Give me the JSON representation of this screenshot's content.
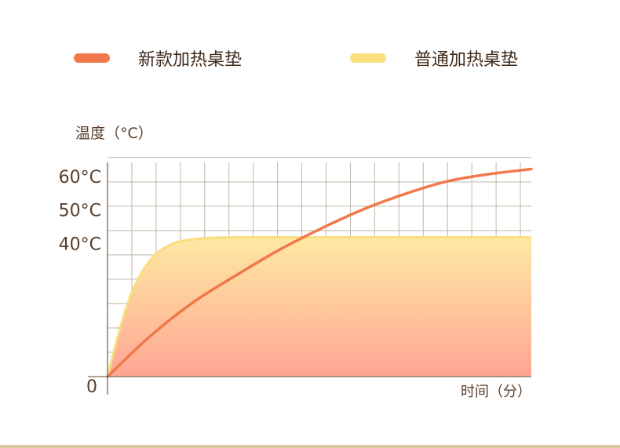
{
  "colors": {
    "new_series": "#f0784a",
    "old_series": "#f8df80",
    "grid": "#bfb6a8",
    "axis": "#7a6a58",
    "text": "#5a3e2b",
    "fill_top": "#fde9a3",
    "fill_bottom": "#ffa593",
    "bottom_rule": "#d9c9a2"
  },
  "chart_data": {
    "type": "line",
    "ylabel": "温度（°C）",
    "xlabel": "时间（分）",
    "y_ticks": [
      {
        "value": 0,
        "label": "0"
      },
      {
        "value": 40,
        "label": "40°C"
      },
      {
        "value": 50,
        "label": "50°C"
      },
      {
        "value": 60,
        "label": "60°C"
      }
    ],
    "ylim": [
      0,
      64
    ],
    "xlim": [
      0,
      100
    ],
    "grid": true,
    "legend_position": "top",
    "series": [
      {
        "name": "新款加热桌垫",
        "color": "#f0784a",
        "x": [
          0,
          10,
          20,
          30,
          40,
          50,
          60,
          70,
          80,
          90,
          100
        ],
        "y": [
          0,
          12,
          22,
          30,
          37.5,
          44,
          49.8,
          54.5,
          58.3,
          60.5,
          62
        ]
      },
      {
        "name": "普通加热桌垫",
        "color": "#f8df80",
        "x": [
          0,
          2,
          4,
          6,
          9,
          12,
          16,
          20,
          25,
          30,
          40,
          60,
          80,
          100
        ],
        "y": [
          0,
          10,
          19,
          26,
          33,
          37.2,
          40,
          41,
          41.5,
          41.6,
          41.6,
          41.6,
          41.6,
          41.6
        ]
      }
    ]
  }
}
